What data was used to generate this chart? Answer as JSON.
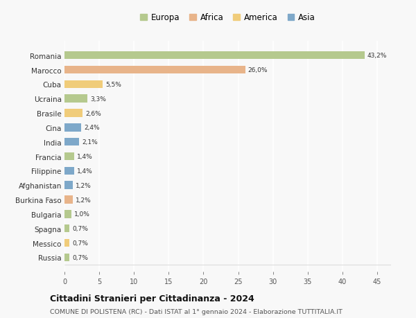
{
  "countries": [
    "Romania",
    "Marocco",
    "Cuba",
    "Ucraina",
    "Brasile",
    "Cina",
    "India",
    "Francia",
    "Filippine",
    "Afghanistan",
    "Burkina Faso",
    "Bulgaria",
    "Spagna",
    "Messico",
    "Russia"
  ],
  "values": [
    43.2,
    26.0,
    5.5,
    3.3,
    2.6,
    2.4,
    2.1,
    1.4,
    1.4,
    1.2,
    1.2,
    1.0,
    0.7,
    0.7,
    0.7
  ],
  "labels": [
    "43,2%",
    "26,0%",
    "5,5%",
    "3,3%",
    "2,6%",
    "2,4%",
    "2,1%",
    "1,4%",
    "1,4%",
    "1,2%",
    "1,2%",
    "1,0%",
    "0,7%",
    "0,7%",
    "0,7%"
  ],
  "continents": [
    "Europa",
    "Africa",
    "America",
    "Europa",
    "America",
    "Asia",
    "Asia",
    "Europa",
    "Asia",
    "Asia",
    "Africa",
    "Europa",
    "Europa",
    "America",
    "Europa"
  ],
  "continent_colors": {
    "Europa": "#b5c98e",
    "Africa": "#e8b48a",
    "America": "#f0cc7a",
    "Asia": "#7ea8c9"
  },
  "legend_order": [
    "Europa",
    "Africa",
    "America",
    "Asia"
  ],
  "title": "Cittadini Stranieri per Cittadinanza - 2024",
  "subtitle": "COMUNE DI POLISTENA (RC) - Dati ISTAT al 1° gennaio 2024 - Elaborazione TUTTITALIA.IT",
  "xlim": [
    0,
    47
  ],
  "xticks": [
    0,
    5,
    10,
    15,
    20,
    25,
    30,
    35,
    40,
    45
  ],
  "background_color": "#f8f8f8",
  "grid_color": "#ffffff",
  "bar_height": 0.55
}
